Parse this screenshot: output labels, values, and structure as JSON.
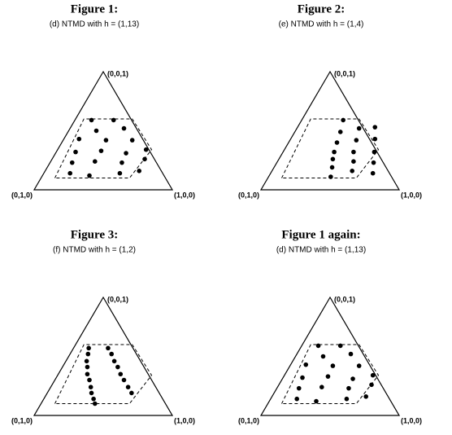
{
  "chart_data": [
    {
      "type": "scatter",
      "title": "Figure 1:",
      "subtitle": "(d) NTMD with h = (1,13)",
      "vertex_labels": [
        "(1,0,0)",
        "(0,1,0)",
        "(0,0,1)"
      ],
      "x": [
        0.12,
        0.28,
        0.2,
        0.39,
        0.11,
        0.31,
        0.5,
        0.64,
        0.14,
        0.32,
        0.51,
        0.67,
        0.16,
        0.32,
        0.52,
        0.19,
        0.34,
        0.55,
        0.68
      ],
      "values": [
        0.59,
        0.59,
        0.5,
        0.52,
        0.43,
        0.42,
        0.42,
        0.34,
        0.32,
        0.33,
        0.31,
        0.26,
        0.23,
        0.24,
        0.23,
        0.14,
        0.12,
        0.14,
        0.16
      ]
    },
    {
      "type": "scatter",
      "title": "Figure 2:",
      "subtitle": "(e) NTMD with h = (1,4)",
      "vertex_labels": [
        "(1,0,0)",
        "(0,1,0)",
        "(0,0,1)"
      ],
      "x": [
        0.3,
        0.33,
        0.35,
        0.37,
        0.39,
        0.42,
        0.45,
        0.45,
        0.48,
        0.51,
        0.55,
        0.58,
        0.56,
        0.61,
        0.66,
        0.7,
        0.74
      ],
      "values": [
        0.59,
        0.49,
        0.4,
        0.32,
        0.26,
        0.19,
        0.11,
        0.52,
        0.42,
        0.32,
        0.24,
        0.16,
        0.53,
        0.43,
        0.32,
        0.23,
        0.14
      ]
    },
    {
      "type": "scatter",
      "title": "Figure 3:",
      "subtitle": "(f) NTMD with h = (1,2)",
      "vertex_labels": [
        "(1,0,0)",
        "(0,1,0)",
        "(0,0,1)"
      ],
      "x": [
        0.11,
        0.13,
        0.15,
        0.18,
        0.21,
        0.25,
        0.29,
        0.32,
        0.36,
        0.39,
        0.25,
        0.3,
        0.35,
        0.4,
        0.45,
        0.5,
        0.56,
        0.61
      ],
      "values": [
        0.57,
        0.52,
        0.46,
        0.41,
        0.35,
        0.3,
        0.24,
        0.19,
        0.14,
        0.1,
        0.57,
        0.52,
        0.46,
        0.41,
        0.35,
        0.3,
        0.24,
        0.19
      ]
    },
    {
      "type": "scatter",
      "title": "Figure 1 again:",
      "subtitle": "(d) NTMD with h = (1,13)",
      "vertex_labels": [
        "(1,0,0)",
        "(0,1,0)",
        "(0,0,1)"
      ],
      "x": [
        0.12,
        0.28,
        0.2,
        0.39,
        0.11,
        0.31,
        0.5,
        0.64,
        0.14,
        0.32,
        0.51,
        0.67,
        0.16,
        0.32,
        0.52,
        0.19,
        0.34,
        0.55,
        0.68
      ],
      "values": [
        0.59,
        0.59,
        0.5,
        0.52,
        0.43,
        0.42,
        0.42,
        0.34,
        0.32,
        0.33,
        0.31,
        0.26,
        0.23,
        0.24,
        0.23,
        0.14,
        0.12,
        0.14,
        0.16
      ]
    }
  ]
}
